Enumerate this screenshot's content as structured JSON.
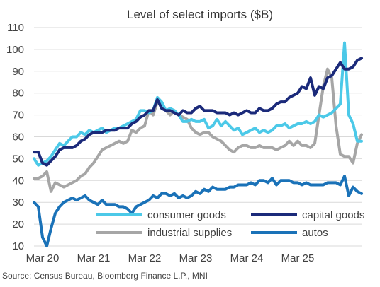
{
  "chart_data": {
    "type": "line",
    "title": "Level of select imports ($B)",
    "source": "Source: Census Bureau, Bloomberg Finance L.P., MNI",
    "xlabel": "",
    "ylabel": "",
    "ylim": [
      10,
      110
    ],
    "y_ticks": [
      10,
      20,
      30,
      40,
      50,
      60,
      70,
      80,
      90,
      100,
      110
    ],
    "x_tick_labels": [
      "Mar 20",
      "Mar 21",
      "Mar 22",
      "Mar 23",
      "Mar 24",
      "Mar 25"
    ],
    "x_tick_index": [
      2,
      14,
      26,
      38,
      50,
      62
    ],
    "start_month": "Jan 2020",
    "grid": true,
    "legend_position": "bottom",
    "series": [
      {
        "name": "consumer goods",
        "color": "#4cc9e8",
        "values": [
          50,
          47,
          48,
          49,
          51,
          54,
          57,
          56,
          58,
          60,
          60,
          62,
          61,
          63,
          62,
          63,
          64,
          62,
          63,
          64,
          64,
          65,
          66,
          67,
          68,
          72,
          72,
          71,
          72,
          78,
          76,
          72,
          73,
          72,
          70,
          67,
          67,
          68,
          67,
          67,
          68,
          64,
          65,
          68,
          65,
          67,
          65,
          63,
          64,
          61,
          62,
          63,
          64,
          62,
          63,
          62,
          63,
          65,
          65,
          66,
          64,
          65,
          66,
          66,
          67,
          66,
          67,
          70,
          69,
          70,
          71,
          73,
          75,
          103,
          70,
          66,
          58,
          58
        ]
      },
      {
        "name": "capital goods",
        "color": "#1b2a7a",
        "values": [
          53,
          53,
          48,
          47,
          49,
          51,
          54,
          55,
          55,
          55,
          56,
          58,
          59,
          61,
          62,
          62,
          62,
          63,
          63,
          63,
          64,
          64,
          64,
          66,
          67,
          69,
          70,
          72,
          72,
          77,
          73,
          72,
          72,
          71,
          70,
          72,
          71,
          71,
          73,
          74,
          72,
          72,
          72,
          71,
          71,
          71,
          70,
          71,
          70,
          71,
          72,
          71,
          71,
          73,
          72,
          72,
          73,
          75,
          76,
          76,
          78,
          79,
          80,
          83,
          82,
          87,
          79,
          83,
          82,
          87,
          88,
          91,
          94,
          91,
          91,
          92,
          95,
          96
        ]
      },
      {
        "name": "industrial supplies",
        "color": "#a6a6a6",
        "values": [
          41,
          41,
          42,
          44,
          35,
          39,
          38,
          37,
          38,
          39,
          40,
          42,
          43,
          46,
          48,
          51,
          54,
          55,
          56,
          57,
          58,
          57,
          58,
          63,
          62,
          64,
          65,
          72,
          70,
          76,
          75,
          72,
          70,
          72,
          70,
          69,
          68,
          64,
          62,
          61,
          62,
          62,
          60,
          59,
          58,
          56,
          54,
          53,
          55,
          56,
          56,
          55,
          55,
          56,
          55,
          55,
          55,
          54,
          55,
          56,
          58,
          56,
          58,
          56,
          56,
          55,
          57,
          70,
          83,
          91,
          87,
          65,
          52,
          51,
          51,
          48,
          57,
          61
        ]
      },
      {
        "name": "autos",
        "color": "#1a72b8",
        "values": [
          30,
          28,
          14,
          10,
          18,
          25,
          28,
          30,
          31,
          32,
          31,
          32,
          33,
          31,
          30,
          29,
          31,
          29,
          29,
          29,
          28,
          28,
          27,
          25,
          28,
          29,
          30,
          31,
          33,
          32,
          34,
          34,
          33,
          34,
          32,
          33,
          32,
          33,
          35,
          34,
          36,
          35,
          37,
          36,
          36,
          36,
          37,
          37,
          38,
          38,
          38,
          39,
          38,
          40,
          40,
          39,
          41,
          38,
          40,
          40,
          40,
          39,
          39,
          38,
          39,
          38,
          38,
          38,
          38,
          39,
          39,
          39,
          38,
          42,
          33,
          37,
          35,
          34
        ]
      }
    ]
  }
}
